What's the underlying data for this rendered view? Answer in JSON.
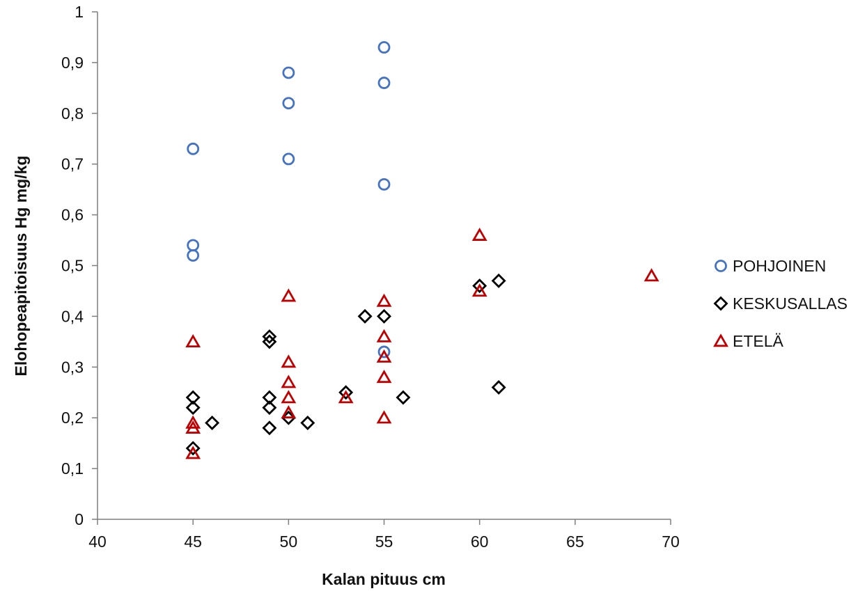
{
  "chart_data": {
    "type": "scatter",
    "title": "",
    "xlabel": "Kalan pituus cm",
    "ylabel": "Elohopeapitoisuus Hg mg/kg",
    "xlim": [
      40,
      70
    ],
    "ylim": [
      0,
      1
    ],
    "xticks": [
      40,
      45,
      50,
      55,
      60,
      65,
      70
    ],
    "xtick_labels": [
      "40",
      "45",
      "50",
      "55",
      "60",
      "65",
      "70"
    ],
    "yticks": [
      0,
      0.1,
      0.2,
      0.3,
      0.4,
      0.5,
      0.6,
      0.7,
      0.8,
      0.9,
      1
    ],
    "ytick_labels": [
      "0",
      "0,1",
      "0,2",
      "0,3",
      "0,4",
      "0,5",
      "0,6",
      "0,7",
      "0,8",
      "0,9",
      "1"
    ],
    "grid": false,
    "legend_position": "right",
    "series": [
      {
        "name": "POHJOINEN",
        "marker": "circle",
        "color": "#4472C4",
        "points": [
          [
            45,
            0.73
          ],
          [
            45,
            0.54
          ],
          [
            45,
            0.52
          ],
          [
            50,
            0.88
          ],
          [
            50,
            0.82
          ],
          [
            50,
            0.71
          ],
          [
            55,
            0.93
          ],
          [
            55,
            0.86
          ],
          [
            55,
            0.66
          ],
          [
            55,
            0.33
          ]
        ]
      },
      {
        "name": "KESKUSALLAS",
        "marker": "diamond",
        "color": "#000000",
        "points": [
          [
            45,
            0.24
          ],
          [
            45,
            0.22
          ],
          [
            45,
            0.14
          ],
          [
            46,
            0.19
          ],
          [
            49,
            0.36
          ],
          [
            49,
            0.35
          ],
          [
            49,
            0.24
          ],
          [
            49,
            0.22
          ],
          [
            49,
            0.18
          ],
          [
            50,
            0.2
          ],
          [
            51,
            0.19
          ],
          [
            53,
            0.25
          ],
          [
            54,
            0.4
          ],
          [
            55,
            0.4
          ],
          [
            56,
            0.24
          ],
          [
            60,
            0.46
          ],
          [
            61,
            0.47
          ],
          [
            61,
            0.26
          ]
        ]
      },
      {
        "name": "ETELÄ",
        "marker": "triangle",
        "color": "#C00000",
        "points": [
          [
            45,
            0.35
          ],
          [
            45,
            0.19
          ],
          [
            45,
            0.18
          ],
          [
            45,
            0.13
          ],
          [
            50,
            0.44
          ],
          [
            50,
            0.31
          ],
          [
            50,
            0.27
          ],
          [
            50,
            0.24
          ],
          [
            50,
            0.21
          ],
          [
            53,
            0.24
          ],
          [
            55,
            0.43
          ],
          [
            55,
            0.36
          ],
          [
            55,
            0.32
          ],
          [
            55,
            0.28
          ],
          [
            55,
            0.2
          ],
          [
            60,
            0.56
          ],
          [
            60,
            0.45
          ],
          [
            69,
            0.48
          ]
        ]
      }
    ]
  }
}
